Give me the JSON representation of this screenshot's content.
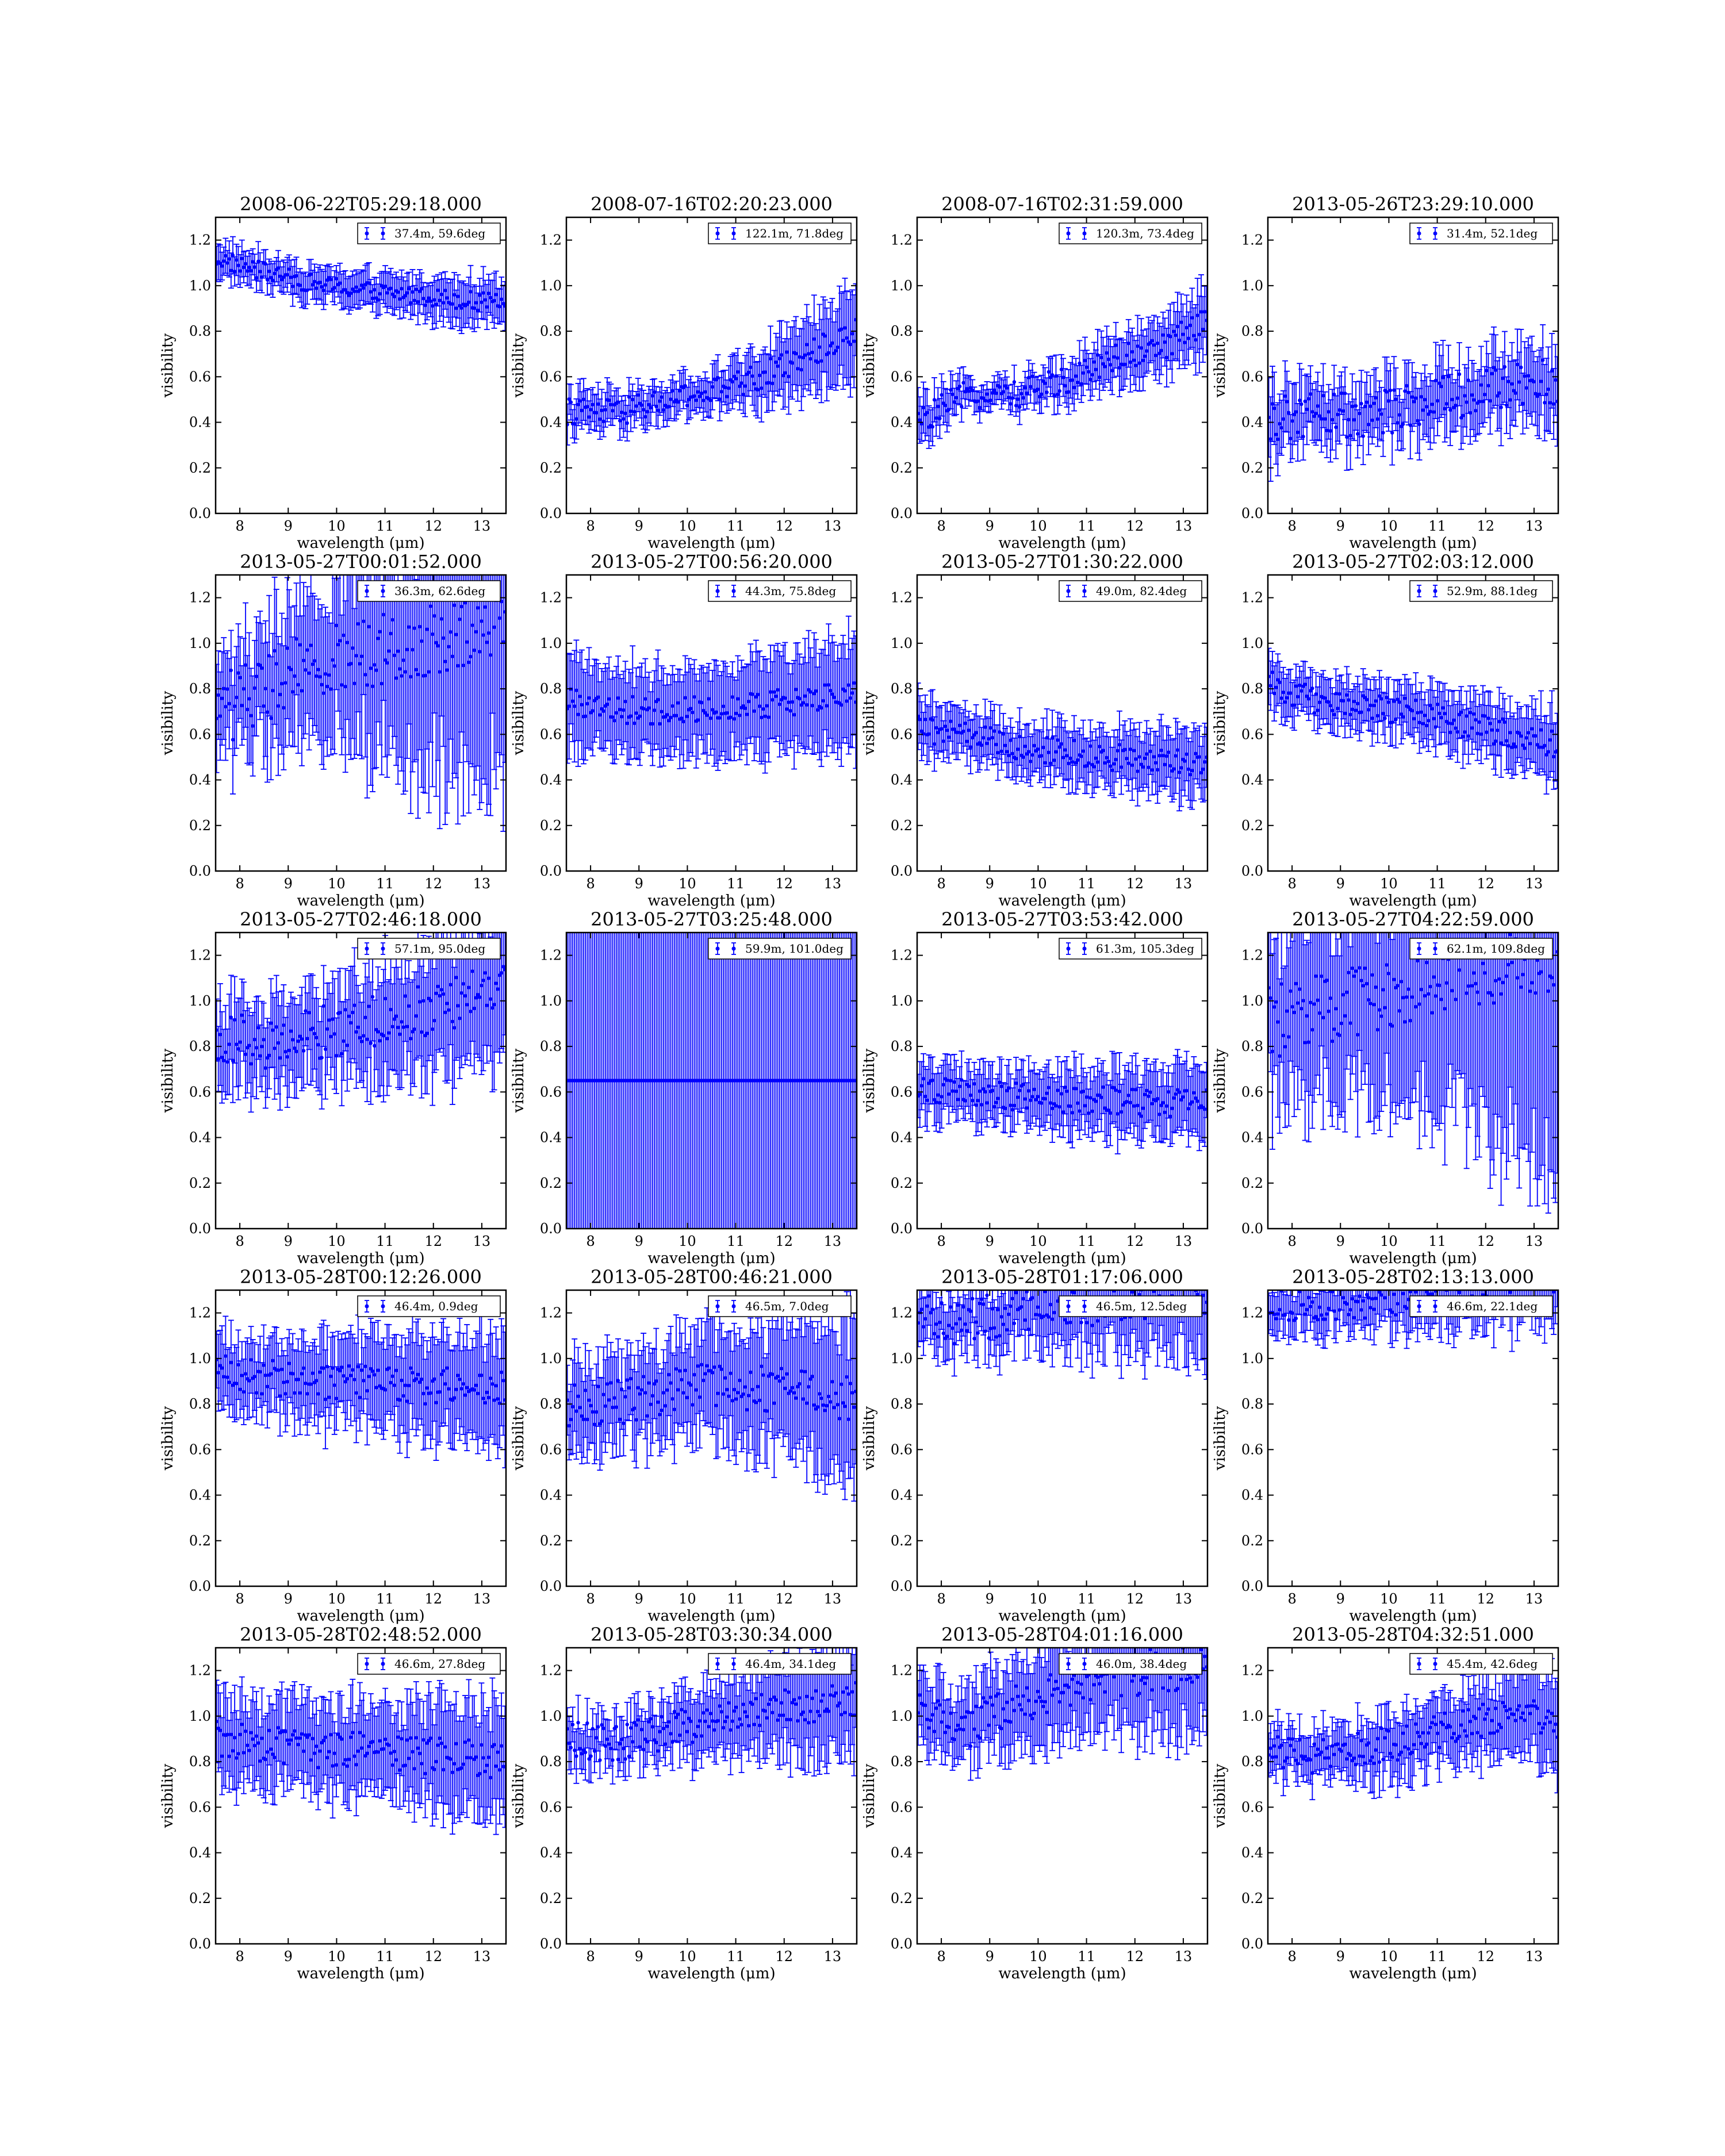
{
  "figure": {
    "accent_color": "#0000ff",
    "background": "#ffffff"
  },
  "chart_data": [
    {
      "type": "scatter",
      "title": "2008-06-22T05:29:18.000",
      "xlabel": "wavelength (μm)",
      "ylabel": "visibility",
      "xlim": [
        7.5,
        13.5
      ],
      "ylim": [
        0,
        1.3
      ],
      "xticks": [
        "8",
        "9",
        "10",
        "11",
        "12",
        "13"
      ],
      "yticks": [
        "0.0",
        "0.2",
        "0.4",
        "0.6",
        "0.8",
        "1.0",
        "1.2"
      ],
      "legend": "37.4m, 59.6deg",
      "legend_loc": "top-right",
      "trend": [
        1.12,
        1.06,
        1.01,
        0.98,
        0.96,
        0.94,
        0.92
      ],
      "err": [
        0.07,
        0.07,
        0.07,
        0.07,
        0.08,
        0.09,
        0.1
      ],
      "scatter": 0.02
    },
    {
      "type": "scatter",
      "title": "2008-07-16T02:20:23.000",
      "xlabel": "wavelength (μm)",
      "ylabel": "visibility",
      "xlim": [
        7.5,
        13.5
      ],
      "ylim": [
        0,
        1.3
      ],
      "xticks": [
        "8",
        "9",
        "10",
        "11",
        "12",
        "13"
      ],
      "yticks": [
        "0.0",
        "0.2",
        "0.4",
        "0.6",
        "0.8",
        "1.0",
        "1.2"
      ],
      "legend": "122.1m, 71.8deg",
      "legend_loc": "top-right",
      "trend": [
        0.45,
        0.44,
        0.49,
        0.53,
        0.6,
        0.7,
        0.8
      ],
      "err": [
        0.08,
        0.08,
        0.07,
        0.08,
        0.12,
        0.15,
        0.2
      ],
      "scatter": 0.03
    },
    {
      "type": "scatter",
      "title": "2008-07-16T02:31:59.000",
      "xlabel": "wavelength (μm)",
      "ylabel": "visibility",
      "xlim": [
        7.5,
        13.5
      ],
      "ylim": [
        0,
        1.3
      ],
      "xticks": [
        "8",
        "9",
        "10",
        "11",
        "12",
        "13"
      ],
      "yticks": [
        "0.0",
        "0.2",
        "0.4",
        "0.6",
        "0.8",
        "1.0",
        "1.2"
      ],
      "legend": "120.3m, 73.4deg",
      "legend_loc": "top-right",
      "trend": [
        0.4,
        0.52,
        0.52,
        0.58,
        0.68,
        0.72,
        0.85
      ],
      "err": [
        0.1,
        0.06,
        0.06,
        0.08,
        0.1,
        0.12,
        0.15
      ],
      "scatter": 0.03
    },
    {
      "type": "scatter",
      "title": "2013-05-26T23:29:10.000",
      "xlabel": "wavelength (μm)",
      "ylabel": "visibility",
      "xlim": [
        7.5,
        13.5
      ],
      "ylim": [
        0,
        1.3
      ],
      "xticks": [
        "8",
        "9",
        "10",
        "11",
        "12",
        "13"
      ],
      "yticks": [
        "0.0",
        "0.2",
        "0.4",
        "0.6",
        "0.8",
        "1.0",
        "1.2"
      ],
      "legend": "31.4m, 52.1deg",
      "legend_loc": "top-right",
      "trend": [
        0.4,
        0.45,
        0.42,
        0.48,
        0.52,
        0.56,
        0.58
      ],
      "err": [
        0.15,
        0.12,
        0.12,
        0.13,
        0.14,
        0.15,
        0.16
      ],
      "scatter": 0.05
    },
    {
      "type": "scatter",
      "title": "2013-05-27T00:01:52.000",
      "xlabel": "wavelength (μm)",
      "ylabel": "visibility",
      "xlim": [
        7.5,
        13.5
      ],
      "ylim": [
        0,
        1.3
      ],
      "xticks": [
        "8",
        "9",
        "10",
        "11",
        "12",
        "13"
      ],
      "yticks": [
        "0.0",
        "0.2",
        "0.4",
        "0.6",
        "0.8",
        "1.0",
        "1.2"
      ],
      "legend": "36.3m, 62.6deg",
      "legend_loc": "top-right",
      "trend": [
        0.7,
        0.8,
        0.9,
        0.95,
        1.0,
        1.05,
        1.1
      ],
      "err": [
        0.2,
        0.25,
        0.3,
        0.4,
        0.5,
        0.6,
        0.7
      ],
      "scatter": 0.08
    },
    {
      "type": "scatter",
      "title": "2013-05-27T00:56:20.000",
      "xlabel": "wavelength (μm)",
      "ylabel": "visibility",
      "xlim": [
        7.5,
        13.5
      ],
      "ylim": [
        0,
        1.3
      ],
      "xticks": [
        "8",
        "9",
        "10",
        "11",
        "12",
        "13"
      ],
      "yticks": [
        "0.0",
        "0.2",
        "0.4",
        "0.6",
        "0.8",
        "1.0",
        "1.2"
      ],
      "legend": "44.3m, 75.8deg",
      "legend_loc": "top-right",
      "trend": [
        0.75,
        0.71,
        0.7,
        0.72,
        0.73,
        0.75,
        0.78
      ],
      "err": [
        0.2,
        0.18,
        0.18,
        0.19,
        0.2,
        0.22,
        0.25
      ],
      "scatter": 0.03
    },
    {
      "type": "scatter",
      "title": "2013-05-27T01:30:22.000",
      "xlabel": "wavelength (μm)",
      "ylabel": "visibility",
      "xlim": [
        7.5,
        13.5
      ],
      "ylim": [
        0,
        1.3
      ],
      "xticks": [
        "8",
        "9",
        "10",
        "11",
        "12",
        "13"
      ],
      "yticks": [
        "0.0",
        "0.2",
        "0.4",
        "0.6",
        "0.8",
        "1.0",
        "1.2"
      ],
      "legend": "49.0m, 82.4deg",
      "legend_loc": "top-right",
      "trend": [
        0.62,
        0.6,
        0.55,
        0.52,
        0.5,
        0.48,
        0.47
      ],
      "err": [
        0.12,
        0.1,
        0.1,
        0.11,
        0.12,
        0.13,
        0.15
      ],
      "scatter": 0.03
    },
    {
      "type": "scatter",
      "title": "2013-05-27T02:03:12.000",
      "xlabel": "wavelength (μm)",
      "ylabel": "visibility",
      "xlim": [
        7.5,
        13.5
      ],
      "ylim": [
        0,
        1.3
      ],
      "xticks": [
        "8",
        "9",
        "10",
        "11",
        "12",
        "13"
      ],
      "yticks": [
        "0.0",
        "0.2",
        "0.4",
        "0.6",
        "0.8",
        "1.0",
        "1.2"
      ],
      "legend": "52.9m, 88.1deg",
      "legend_loc": "top-right",
      "trend": [
        0.82,
        0.75,
        0.72,
        0.7,
        0.65,
        0.6,
        0.55
      ],
      "err": [
        0.1,
        0.1,
        0.1,
        0.11,
        0.12,
        0.13,
        0.15
      ],
      "scatter": 0.03
    },
    {
      "type": "scatter",
      "title": "2013-05-27T02:46:18.000",
      "xlabel": "wavelength (μm)",
      "ylabel": "visibility",
      "xlim": [
        7.5,
        13.5
      ],
      "ylim": [
        0,
        1.3
      ],
      "xticks": [
        "8",
        "9",
        "10",
        "11",
        "12",
        "13"
      ],
      "yticks": [
        "0.0",
        "0.2",
        "0.4",
        "0.6",
        "0.8",
        "1.0",
        "1.2"
      ],
      "legend": "57.1m, 95.0deg",
      "legend_loc": "top-right",
      "trend": [
        0.85,
        0.82,
        0.85,
        0.9,
        0.95,
        1.0,
        1.05
      ],
      "err": [
        0.18,
        0.18,
        0.2,
        0.22,
        0.25,
        0.3,
        0.35
      ],
      "scatter": 0.06
    },
    {
      "type": "scatter",
      "title": "2013-05-27T03:25:48.000",
      "xlabel": "wavelength (μm)",
      "ylabel": "visibility",
      "xlim": [
        7.5,
        13.5
      ],
      "ylim": [
        0,
        1.3
      ],
      "xticks": [
        "8",
        "9",
        "10",
        "11",
        "12",
        "13"
      ],
      "yticks": [
        "0.0",
        "0.2",
        "0.4",
        "0.6",
        "0.8",
        "1.0",
        "1.2"
      ],
      "legend": "59.9m, 101.0deg",
      "legend_loc": "top-right",
      "trend": [
        0.65,
        0.65,
        0.65,
        0.65,
        0.65,
        0.65,
        0.65
      ],
      "err": [
        3,
        3,
        3,
        3,
        3,
        3,
        3
      ],
      "scatter": 0.0
    },
    {
      "type": "scatter",
      "title": "2013-05-27T03:53:42.000",
      "xlabel": "wavelength (μm)",
      "ylabel": "visibility",
      "xlim": [
        7.5,
        13.5
      ],
      "ylim": [
        0,
        1.3
      ],
      "xticks": [
        "8",
        "9",
        "10",
        "11",
        "12",
        "13"
      ],
      "yticks": [
        "0.0",
        "0.2",
        "0.4",
        "0.6",
        "0.8",
        "1.0",
        "1.2"
      ],
      "legend": "61.3m, 105.3deg",
      "legend_loc": "top-right",
      "trend": [
        0.62,
        0.6,
        0.58,
        0.57,
        0.56,
        0.55,
        0.55
      ],
      "err": [
        0.12,
        0.11,
        0.12,
        0.13,
        0.14,
        0.15,
        0.16
      ],
      "scatter": 0.03
    },
    {
      "type": "scatter",
      "title": "2013-05-27T04:22:59.000",
      "xlabel": "wavelength (μm)",
      "ylabel": "visibility",
      "xlim": [
        7.5,
        13.5
      ],
      "ylim": [
        0,
        1.3
      ],
      "xticks": [
        "8",
        "9",
        "10",
        "11",
        "12",
        "13"
      ],
      "yticks": [
        "0.0",
        "0.2",
        "0.4",
        "0.6",
        "0.8",
        "1.0",
        "1.2"
      ],
      "legend": "62.1m, 109.8deg",
      "legend_loc": "top-right",
      "trend": [
        0.9,
        0.95,
        1.0,
        1.05,
        1.1,
        1.15,
        1.2
      ],
      "err": [
        0.35,
        0.4,
        0.45,
        0.5,
        0.6,
        0.8,
        1.0
      ],
      "scatter": 0.08
    },
    {
      "type": "scatter",
      "title": "2013-05-28T00:12:26.000",
      "xlabel": "wavelength (μm)",
      "ylabel": "visibility",
      "xlim": [
        7.5,
        13.5
      ],
      "ylim": [
        0,
        1.3
      ],
      "xticks": [
        "8",
        "9",
        "10",
        "11",
        "12",
        "13"
      ],
      "yticks": [
        "0.0",
        "0.2",
        "0.4",
        "0.6",
        "0.8",
        "1.0",
        "1.2"
      ],
      "legend": "46.4m, 0.9deg",
      "legend_loc": "top-right",
      "trend": [
        0.95,
        0.92,
        0.9,
        0.89,
        0.88,
        0.88,
        0.88
      ],
      "err": [
        0.15,
        0.15,
        0.17,
        0.19,
        0.2,
        0.22,
        0.25
      ],
      "scatter": 0.04
    },
    {
      "type": "scatter",
      "title": "2013-05-28T00:46:21.000",
      "xlabel": "wavelength (μm)",
      "ylabel": "visibility",
      "xlim": [
        7.5,
        13.5
      ],
      "ylim": [
        0,
        1.3
      ],
      "xticks": [
        "8",
        "9",
        "10",
        "11",
        "12",
        "13"
      ],
      "yticks": [
        "0.0",
        "0.2",
        "0.4",
        "0.6",
        "0.8",
        "1.0",
        "1.2"
      ],
      "legend": "46.5m, 7.0deg",
      "legend_loc": "top-right",
      "trend": [
        0.8,
        0.8,
        0.85,
        0.88,
        0.87,
        0.85,
        0.82
      ],
      "err": [
        0.18,
        0.18,
        0.2,
        0.22,
        0.25,
        0.3,
        0.35
      ],
      "scatter": 0.05
    },
    {
      "type": "scatter",
      "title": "2013-05-28T01:17:06.000",
      "xlabel": "wavelength (μm)",
      "ylabel": "visibility",
      "xlim": [
        7.5,
        13.5
      ],
      "ylim": [
        0,
        1.3
      ],
      "xticks": [
        "8",
        "9",
        "10",
        "11",
        "12",
        "13"
      ],
      "yticks": [
        "0.0",
        "0.2",
        "0.4",
        "0.6",
        "0.8",
        "1.0",
        "1.2"
      ],
      "legend": "46.5m, 12.5deg",
      "legend_loc": "top-right",
      "trend": [
        1.18,
        1.16,
        1.2,
        1.22,
        1.25,
        1.28,
        1.3
      ],
      "err": [
        0.12,
        0.12,
        0.15,
        0.18,
        0.2,
        0.25,
        0.3
      ],
      "scatter": 0.05
    },
    {
      "type": "scatter",
      "title": "2013-05-28T02:13:13.000",
      "xlabel": "wavelength (μm)",
      "ylabel": "visibility",
      "xlim": [
        7.5,
        13.5
      ],
      "ylim": [
        0,
        1.3
      ],
      "xticks": [
        "8",
        "9",
        "10",
        "11",
        "12",
        "13"
      ],
      "yticks": [
        "0.0",
        "0.2",
        "0.4",
        "0.6",
        "0.8",
        "1.0",
        "1.2"
      ],
      "legend": "46.6m, 22.1deg",
      "legend_loc": "top-right",
      "trend": [
        1.25,
        1.22,
        1.25,
        1.28,
        1.3,
        1.32,
        1.35
      ],
      "err": [
        0.1,
        0.1,
        0.12,
        0.15,
        0.15,
        0.18,
        0.2
      ],
      "scatter": 0.04
    },
    {
      "type": "scatter",
      "title": "2013-05-28T02:48:52.000",
      "xlabel": "wavelength (μm)",
      "ylabel": "visibility",
      "xlim": [
        7.5,
        13.5
      ],
      "ylim": [
        0,
        1.3
      ],
      "xticks": [
        "8",
        "9",
        "10",
        "11",
        "12",
        "13"
      ],
      "yticks": [
        "0.0",
        "0.2",
        "0.4",
        "0.6",
        "0.8",
        "1.0",
        "1.2"
      ],
      "legend": "46.6m, 27.8deg",
      "legend_loc": "top-right",
      "trend": [
        0.9,
        0.88,
        0.85,
        0.85,
        0.83,
        0.82,
        0.8
      ],
      "err": [
        0.2,
        0.18,
        0.18,
        0.19,
        0.2,
        0.22,
        0.25
      ],
      "scatter": 0.04
    },
    {
      "type": "scatter",
      "title": "2013-05-28T03:30:34.000",
      "xlabel": "wavelength (μm)",
      "ylabel": "visibility",
      "xlim": [
        7.5,
        13.5
      ],
      "ylim": [
        0,
        1.3
      ],
      "xticks": [
        "8",
        "9",
        "10",
        "11",
        "12",
        "13"
      ],
      "yticks": [
        "0.0",
        "0.2",
        "0.4",
        "0.6",
        "0.8",
        "1.0",
        "1.2"
      ],
      "legend": "46.4m, 34.1deg",
      "legend_loc": "top-right",
      "trend": [
        0.9,
        0.88,
        0.93,
        0.98,
        1.02,
        1.05,
        1.08
      ],
      "err": [
        0.1,
        0.1,
        0.12,
        0.15,
        0.18,
        0.22,
        0.25
      ],
      "scatter": 0.04
    },
    {
      "type": "scatter",
      "title": "2013-05-28T04:01:16.000",
      "xlabel": "wavelength (μm)",
      "ylabel": "visibility",
      "xlim": [
        7.5,
        13.5
      ],
      "ylim": [
        0,
        1.3
      ],
      "xticks": [
        "8",
        "9",
        "10",
        "11",
        "12",
        "13"
      ],
      "yticks": [
        "0.0",
        "0.2",
        "0.4",
        "0.6",
        "0.8",
        "1.0",
        "1.2"
      ],
      "legend": "46.0m, 38.4deg",
      "legend_loc": "top-right",
      "trend": [
        1.0,
        0.95,
        1.05,
        1.12,
        1.18,
        1.2,
        1.22
      ],
      "err": [
        0.15,
        0.15,
        0.18,
        0.2,
        0.22,
        0.25,
        0.3
      ],
      "scatter": 0.05
    },
    {
      "type": "scatter",
      "title": "2013-05-28T04:32:51.000",
      "xlabel": "wavelength (μm)",
      "ylabel": "visibility",
      "xlim": [
        7.5,
        13.5
      ],
      "ylim": [
        0,
        1.3
      ],
      "xticks": [
        "8",
        "9",
        "10",
        "11",
        "12",
        "13"
      ],
      "yticks": [
        "0.0",
        "0.2",
        "0.4",
        "0.6",
        "0.8",
        "1.0",
        "1.2"
      ],
      "legend": "45.4m, 42.6deg",
      "legend_loc": "top-right",
      "trend": [
        0.85,
        0.82,
        0.85,
        0.9,
        0.95,
        1.0,
        0.98
      ],
      "err": [
        0.1,
        0.1,
        0.12,
        0.14,
        0.15,
        0.18,
        0.2
      ],
      "scatter": 0.04
    }
  ]
}
